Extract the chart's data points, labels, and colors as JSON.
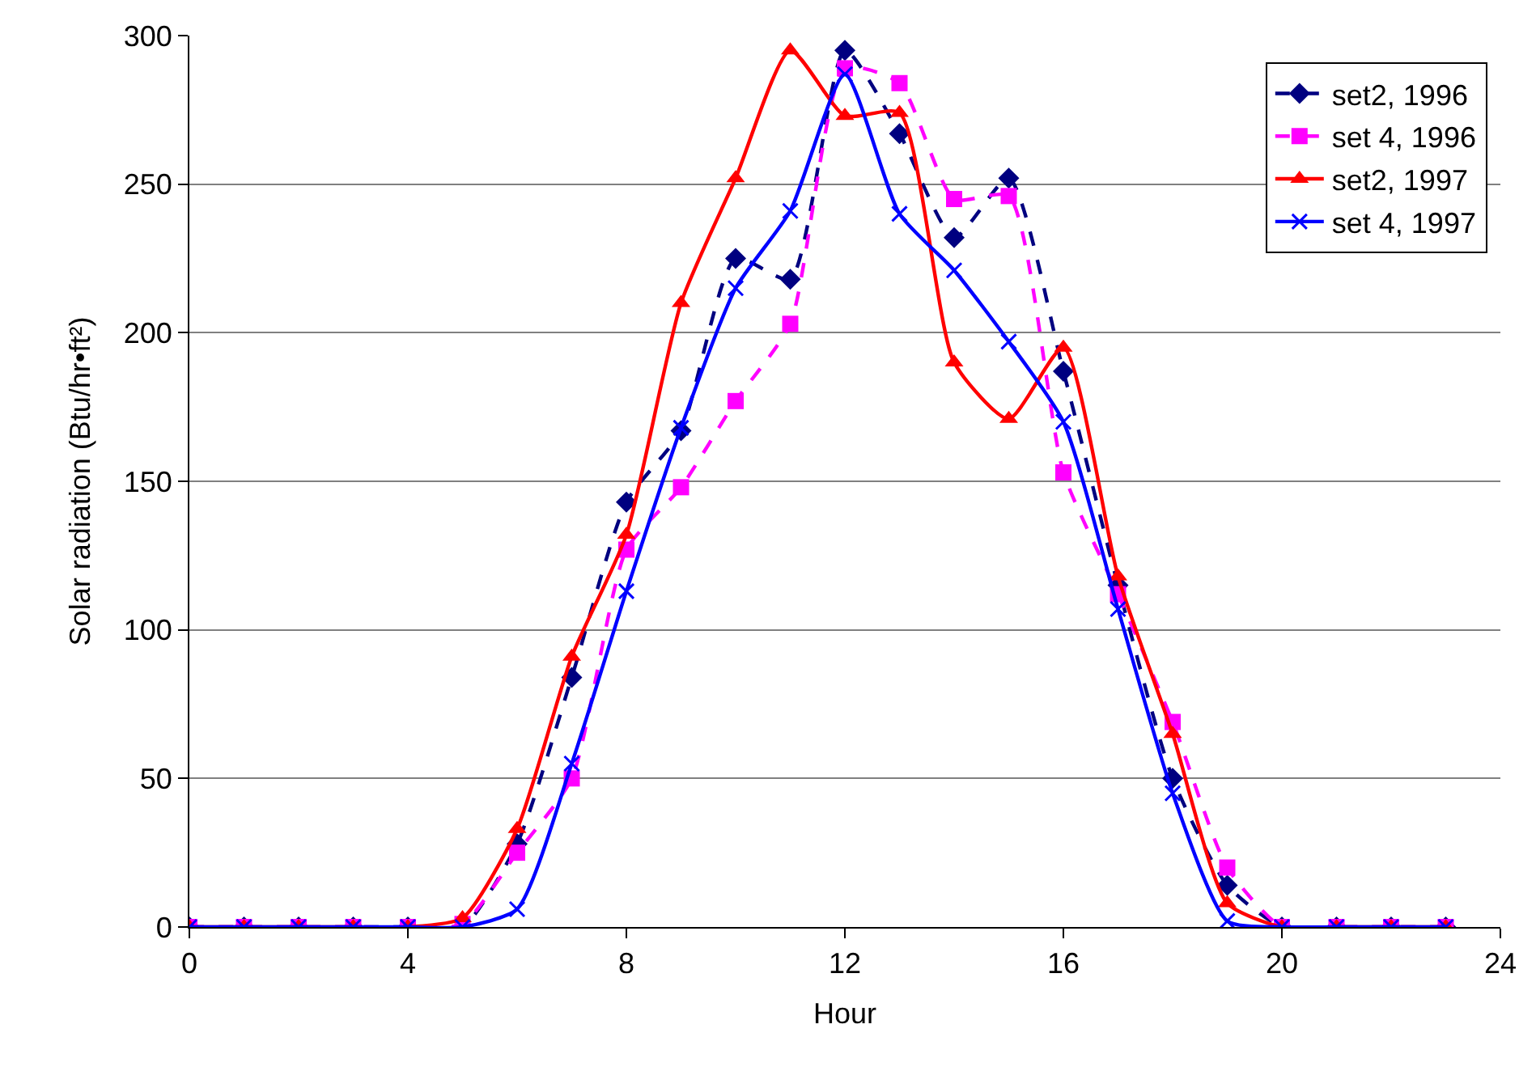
{
  "chart_data": {
    "type": "line",
    "xlabel": "Hour",
    "ylabel": "Solar radiation (Btu/hr•ft²)",
    "x": [
      0,
      1,
      2,
      3,
      4,
      5,
      6,
      7,
      8,
      9,
      10,
      11,
      12,
      13,
      14,
      15,
      16,
      17,
      18,
      19,
      20,
      21,
      22,
      23
    ],
    "series": [
      {
        "name": "set2, 1996",
        "color": "#000080",
        "marker": "diamond",
        "line_style": "dashed",
        "values": [
          0,
          0,
          0,
          0,
          0,
          0,
          28,
          84,
          143,
          167,
          225,
          218,
          295,
          267,
          232,
          252,
          187,
          115,
          50,
          14,
          0,
          0,
          0,
          0
        ]
      },
      {
        "name": "set 4, 1996",
        "color": "#ff00ff",
        "marker": "square",
        "line_style": "dashed",
        "values": [
          0,
          0,
          0,
          0,
          0,
          1,
          25,
          50,
          127,
          148,
          177,
          203,
          289,
          284,
          245,
          246,
          153,
          112,
          69,
          20,
          0,
          0,
          0,
          0
        ]
      },
      {
        "name": "set2, 1997",
        "color": "#ff0000",
        "marker": "triangle",
        "line_style": "solid",
        "values": [
          0,
          0,
          0,
          0,
          0,
          3,
          33,
          91,
          132,
          210,
          252,
          295,
          273,
          274,
          190,
          171,
          195,
          118,
          65,
          8,
          0,
          0,
          0,
          0
        ]
      },
      {
        "name": "set 4, 1997",
        "color": "#0000ff",
        "marker": "cross",
        "line_style": "solid",
        "values": [
          0,
          0,
          0,
          0,
          0,
          0,
          6,
          55,
          113,
          168,
          215,
          241,
          287,
          240,
          221,
          197,
          170,
          107,
          45,
          2,
          0,
          0,
          0,
          0
        ]
      }
    ],
    "xlim": [
      0,
      24
    ],
    "xticks": [
      0,
      4,
      8,
      12,
      16,
      20,
      24
    ],
    "ylim": [
      0,
      300
    ],
    "yticks": [
      0,
      50,
      100,
      150,
      200,
      250,
      300
    ],
    "grid": "y",
    "legend": "top right"
  }
}
